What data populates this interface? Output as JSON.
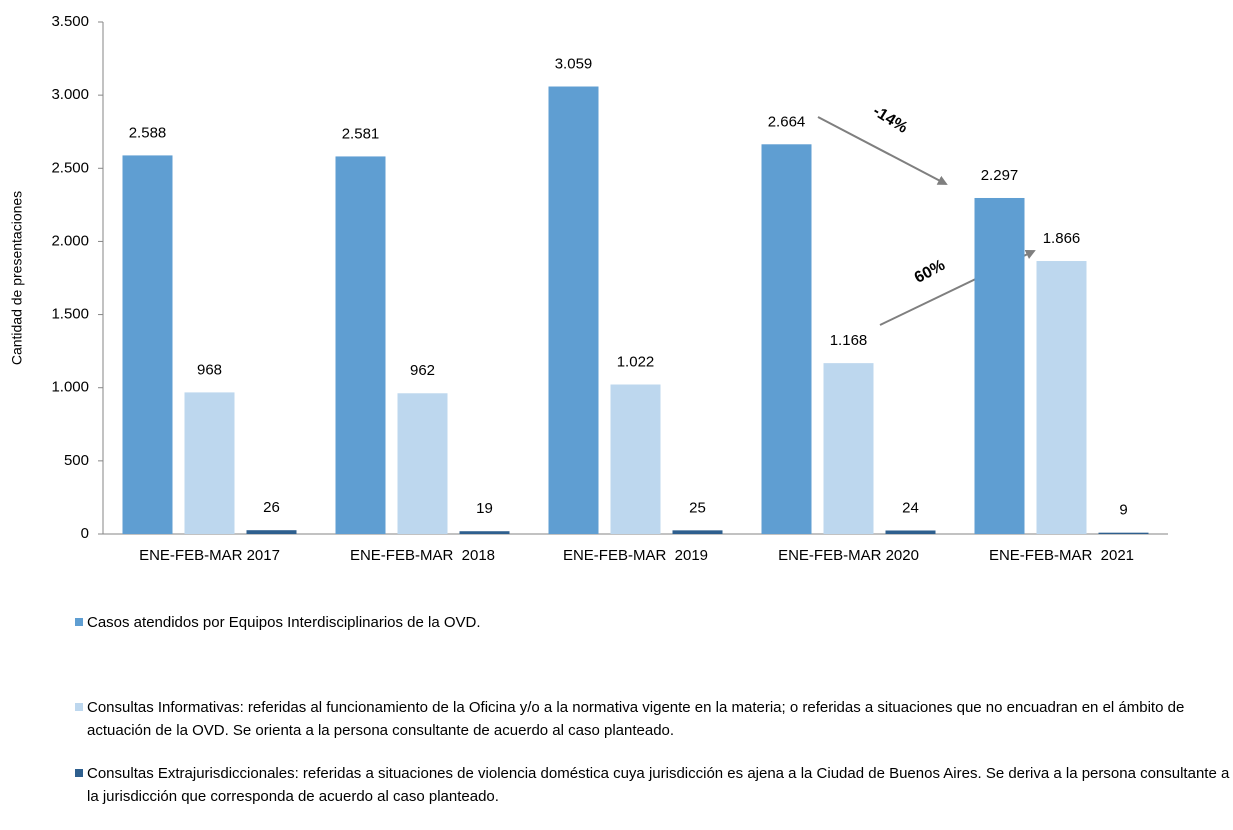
{
  "chart_data": {
    "type": "bar",
    "y_label": "Cantidad de presentaciones",
    "categories": [
      "ENE-FEB-MAR 2017",
      "ENE-FEB-MAR  2018",
      "ENE-FEB-MAR  2019",
      "ENE-FEB-MAR 2020",
      "ENE-FEB-MAR  2021"
    ],
    "series": [
      {
        "name": "Casos atendidos por Equipos Interdisciplinarios de la OVD.",
        "color": "#5f9ed2",
        "values": [
          2588,
          2581,
          3059,
          2664,
          2297
        ],
        "value_labels": [
          "2.588",
          "2.581",
          "3.059",
          "2.664",
          "2.297"
        ]
      },
      {
        "name": "Consultas Informativas: referidas al funcionamiento de la Oficina y/o a la normativa vigente en la materia; o referidas a  situaciones que no encuadran en el ámbito de actuación de la OVD. Se orienta a la persona consultante de acuerdo al caso planteado.",
        "color": "#bdd7ee",
        "values": [
          968,
          962,
          1022,
          1168,
          1866
        ],
        "value_labels": [
          "968",
          "962",
          "1.022",
          "1.168",
          "1.866"
        ]
      },
      {
        "name": "Consultas Extrajurisdiccionales: referidas a situaciones de violencia doméstica cuya jurisdicción es ajena a la Ciudad de Buenos Aires. Se deriva a la persona consultante a la jurisdicción que corresponda de acuerdo al caso planteado.",
        "color": "#2e5f8e",
        "values": [
          26,
          19,
          25,
          24,
          9
        ]
      }
    ],
    "ylim": [
      0,
      3500
    ],
    "yticks": [
      0,
      500,
      {
        "value": 1000,
        "label": "1.000"
      },
      {
        "value": 1500,
        "label": "1.500"
      },
      {
        "value": 2000,
        "label": "2.000"
      },
      {
        "value": 2500,
        "label": "2.500"
      },
      {
        "value": 3000,
        "label": "3.000"
      },
      {
        "value": 3500,
        "label": "3.500"
      }
    ],
    "annotations": [
      "-14%",
      "60%"
    ]
  }
}
